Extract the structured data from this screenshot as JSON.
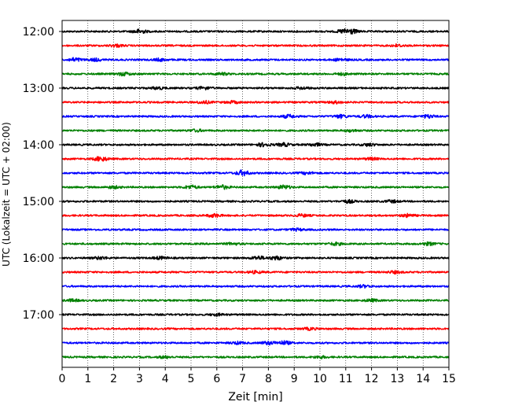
{
  "chart_data": {
    "type": "line",
    "title": "",
    "xlabel": "Zeit  [min]",
    "ylabel": "UTC (Lokalzeit = UTC + 02:00)",
    "xlim": [
      0,
      15
    ],
    "x_ticks": [
      "0",
      "1",
      "2",
      "3",
      "4",
      "5",
      "6",
      "7",
      "8",
      "9",
      "10",
      "11",
      "12",
      "13",
      "14",
      "15"
    ],
    "y_ticks": [
      "12:00",
      "13:00",
      "14:00",
      "15:00",
      "16:00",
      "17:00"
    ],
    "grid": "vertical dotted at each minute",
    "trace_interval_min": 15,
    "color_cycle": [
      "#000000",
      "#ff0000",
      "#0000ff",
      "#008000"
    ],
    "traces": [
      {
        "start": "12:00",
        "color": "#000000",
        "events": [
          [
            3.0,
            2.3
          ],
          [
            11.2,
            2.5
          ],
          [
            10.9,
            1.6
          ]
        ]
      },
      {
        "start": "12:15",
        "color": "#ff0000",
        "events": [
          [
            2.1,
            1.4
          ],
          [
            13.0,
            1.3
          ]
        ]
      },
      {
        "start": "12:30",
        "color": "#0000ff",
        "events": [
          [
            0.5,
            2.0
          ],
          [
            1.3,
            1.4
          ],
          [
            3.8,
            1.3
          ],
          [
            10.8,
            1.4
          ]
        ]
      },
      {
        "start": "12:45",
        "color": "#008000",
        "events": [
          [
            2.4,
            1.8
          ],
          [
            6.2,
            1.2
          ],
          [
            10.9,
            1.2
          ]
        ]
      },
      {
        "start": "13:00",
        "color": "#000000",
        "events": [
          [
            3.7,
            1.3
          ],
          [
            5.5,
            1.6
          ],
          [
            9.3,
            1.2
          ]
        ]
      },
      {
        "start": "13:15",
        "color": "#ff0000",
        "events": [
          [
            5.5,
            1.5
          ],
          [
            6.6,
            1.3
          ],
          [
            10.6,
            1.3
          ]
        ]
      },
      {
        "start": "13:30",
        "color": "#0000ff",
        "events": [
          [
            8.8,
            1.8
          ],
          [
            10.8,
            1.8
          ],
          [
            11.8,
            1.5
          ],
          [
            14.2,
            1.8
          ]
        ]
      },
      {
        "start": "13:45",
        "color": "#008000",
        "events": [
          [
            5.2,
            1.2
          ],
          [
            11.2,
            1.2
          ]
        ]
      },
      {
        "start": "14:00",
        "color": "#000000",
        "events": [
          [
            7.8,
            1.9
          ],
          [
            8.6,
            1.8
          ],
          [
            9.8,
            1.6
          ],
          [
            11.9,
            1.4
          ]
        ]
      },
      {
        "start": "14:15",
        "color": "#ff0000",
        "events": [
          [
            1.5,
            2.6
          ],
          [
            12.0,
            1.2
          ]
        ]
      },
      {
        "start": "14:30",
        "color": "#0000ff",
        "events": [
          [
            7.0,
            2.9
          ],
          [
            9.5,
            1.2
          ]
        ]
      },
      {
        "start": "14:45",
        "color": "#008000",
        "events": [
          [
            5.0,
            1.9
          ],
          [
            6.2,
            2.2
          ],
          [
            8.6,
            2.0
          ],
          [
            2.0,
            1.3
          ]
        ]
      },
      {
        "start": "15:00",
        "color": "#000000",
        "events": [
          [
            11.1,
            1.6
          ],
          [
            12.8,
            1.3
          ]
        ]
      },
      {
        "start": "15:15",
        "color": "#ff0000",
        "events": [
          [
            5.9,
            1.9
          ],
          [
            13.4,
            1.7
          ],
          [
            9.3,
            1.3
          ]
        ]
      },
      {
        "start": "15:30",
        "color": "#0000ff",
        "events": [
          [
            9.1,
            1.2
          ]
        ]
      },
      {
        "start": "15:45",
        "color": "#008000",
        "events": [
          [
            10.6,
            1.5
          ],
          [
            14.2,
            1.6
          ],
          [
            6.6,
            1.2
          ]
        ]
      },
      {
        "start": "16:00",
        "color": "#000000",
        "events": [
          [
            7.6,
            1.9
          ],
          [
            8.3,
            2.1
          ],
          [
            1.5,
            1.4
          ],
          [
            3.8,
            1.4
          ]
        ]
      },
      {
        "start": "16:15",
        "color": "#ff0000",
        "events": [
          [
            7.5,
            1.3
          ],
          [
            12.9,
            1.3
          ]
        ]
      },
      {
        "start": "16:30",
        "color": "#0000ff",
        "events": [
          [
            11.7,
            1.3
          ]
        ]
      },
      {
        "start": "16:45",
        "color": "#008000",
        "events": [
          [
            0.4,
            1.3
          ],
          [
            12.0,
            1.3
          ]
        ]
      },
      {
        "start": "17:00",
        "color": "#000000",
        "events": [
          [
            6.0,
            1.2
          ]
        ]
      },
      {
        "start": "17:15",
        "color": "#ff0000",
        "events": [
          [
            9.6,
            1.2
          ]
        ]
      },
      {
        "start": "17:30",
        "color": "#0000ff",
        "events": [
          [
            8.0,
            1.7
          ],
          [
            8.6,
            2.0
          ],
          [
            6.8,
            1.3
          ]
        ]
      },
      {
        "start": "17:45",
        "color": "#008000",
        "events": [
          [
            4.0,
            1.2
          ],
          [
            10.0,
            1.2
          ]
        ]
      }
    ]
  }
}
